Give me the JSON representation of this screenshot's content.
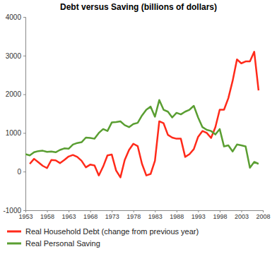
{
  "chart_data": {
    "type": "line",
    "title": "Debt versus Saving (billions of dollars)",
    "x": [
      1953,
      1954,
      1955,
      1956,
      1957,
      1958,
      1959,
      1960,
      1961,
      1962,
      1963,
      1964,
      1965,
      1966,
      1967,
      1968,
      1969,
      1970,
      1971,
      1972,
      1973,
      1974,
      1975,
      1976,
      1977,
      1978,
      1979,
      1980,
      1981,
      1982,
      1983,
      1984,
      1985,
      1986,
      1987,
      1988,
      1989,
      1990,
      1991,
      1992,
      1993,
      1994,
      1995,
      1996,
      1997,
      1998,
      1999,
      2000,
      2001,
      2002,
      2003,
      2004,
      2005,
      2006,
      2007
    ],
    "series": [
      {
        "name": "Real Household Debt (change from previous year)",
        "color": "#ff2a1a",
        "values": [
          null,
          200,
          330,
          240,
          150,
          90,
          300,
          290,
          220,
          300,
          390,
          430,
          380,
          280,
          110,
          180,
          160,
          -100,
          130,
          420,
          440,
          30,
          -150,
          300,
          560,
          720,
          660,
          200,
          -100,
          -60,
          280,
          1300,
          1250,
          950,
          880,
          850,
          850,
          380,
          450,
          580,
          900,
          1050,
          1000,
          870,
          1150,
          1600,
          1600,
          1900,
          2350,
          2900,
          2800,
          2850,
          2850,
          3100,
          2100
        ]
      },
      {
        "name": "Real Personal Saving",
        "color": "#5a9e32",
        "values": [
          450,
          420,
          500,
          530,
          540,
          510,
          520,
          500,
          560,
          600,
          590,
          700,
          740,
          760,
          880,
          870,
          850,
          1000,
          1100,
          1050,
          1270,
          1280,
          1300,
          1200,
          1150,
          1230,
          1260,
          1450,
          1600,
          1680,
          1420,
          1850,
          1600,
          1550,
          1400,
          1520,
          1480,
          1550,
          1600,
          1700,
          1400,
          1150,
          1080,
          1050,
          960,
          1100,
          650,
          680,
          520,
          700,
          680,
          650,
          100,
          250,
          200
        ]
      }
    ],
    "xlim": [
      1953,
      2008
    ],
    "xticks": [
      1953,
      1958,
      1963,
      1968,
      1973,
      1978,
      1983,
      1988,
      1993,
      1998,
      2003,
      2008
    ],
    "ylim": [
      -1000,
      4000
    ],
    "yticks": [
      -1000,
      0,
      1000,
      2000,
      3000,
      4000
    ],
    "grid": false,
    "legend": "bottom"
  }
}
